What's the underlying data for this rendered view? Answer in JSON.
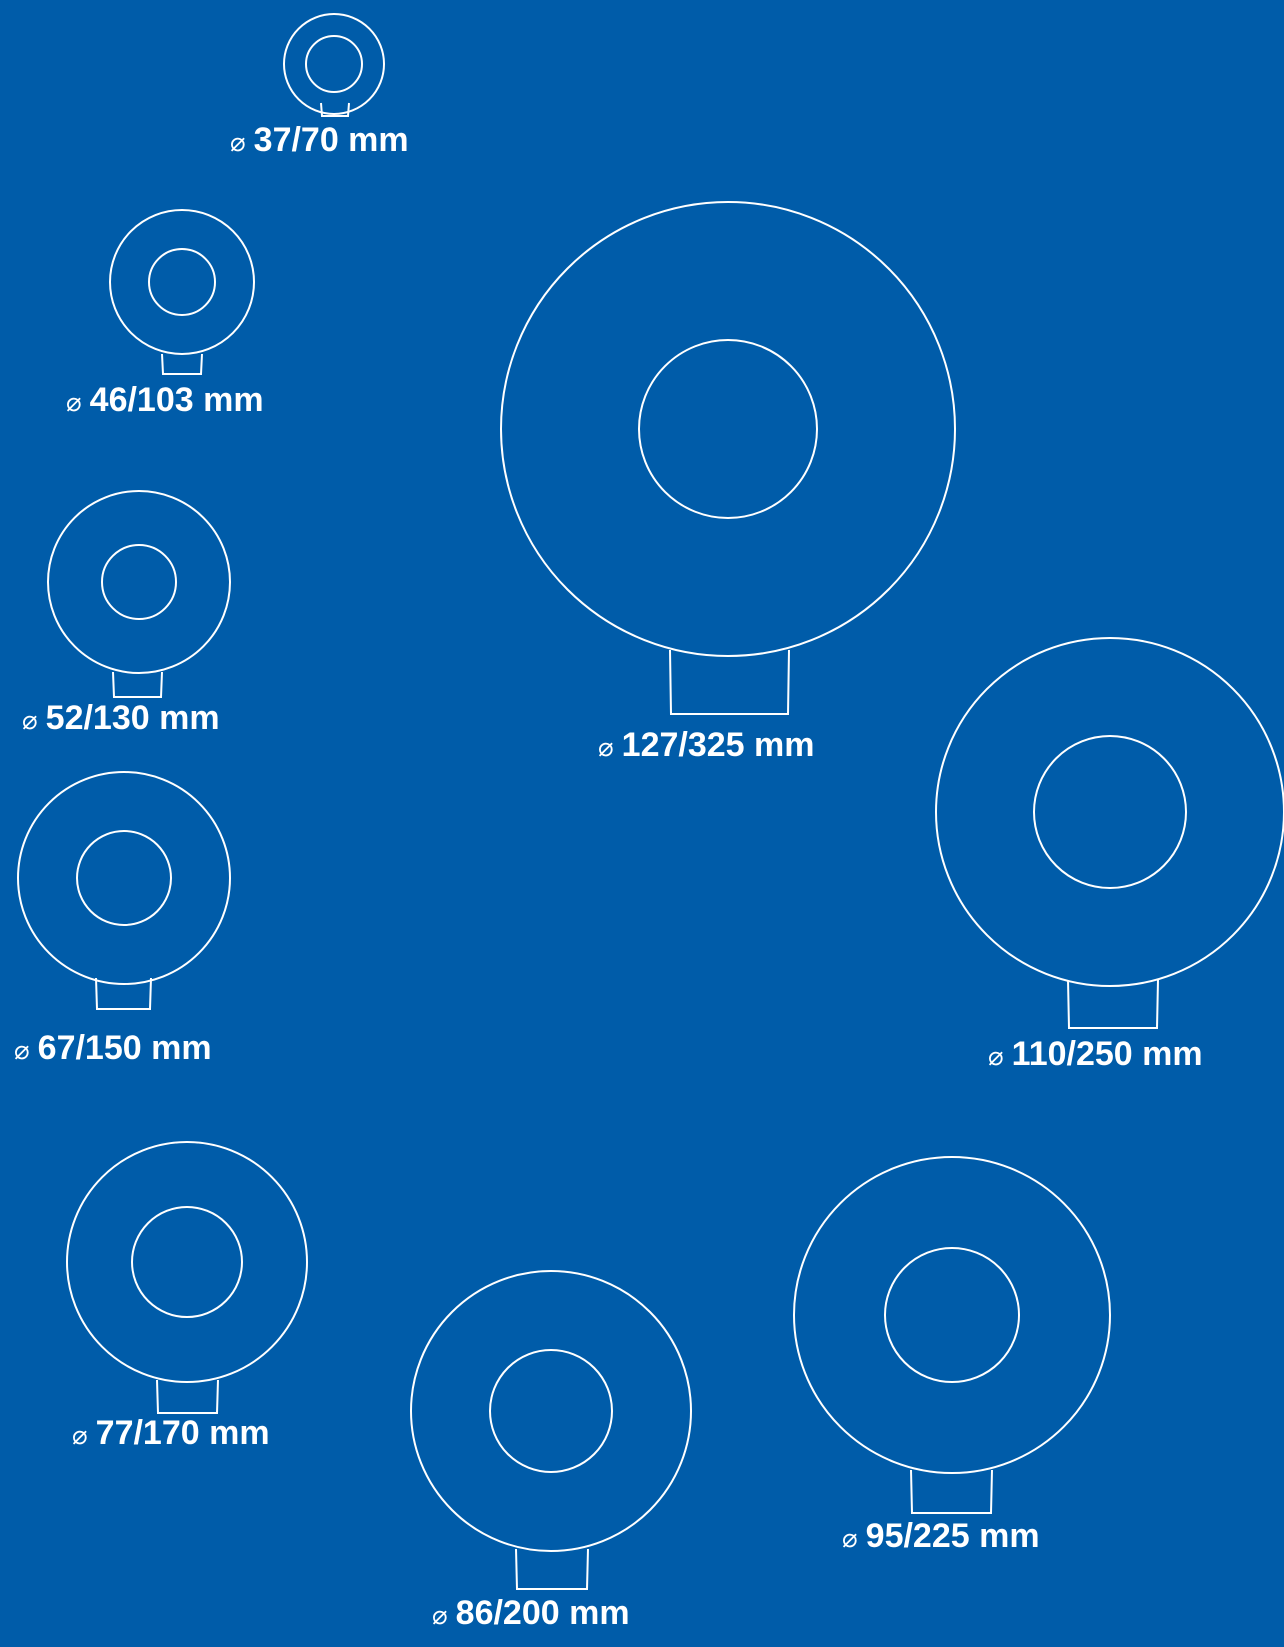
{
  "colors": {
    "background": "#005ca9",
    "line": "#ffffff"
  },
  "diameter_symbol": "⌀",
  "fittings": [
    {
      "name": "37-70",
      "label": "37/70 mm",
      "inner_mm": 37,
      "outer_mm": 70
    },
    {
      "name": "46-103",
      "label": "46/103 mm",
      "inner_mm": 46,
      "outer_mm": 103
    },
    {
      "name": "52-130",
      "label": "52/130 mm",
      "inner_mm": 52,
      "outer_mm": 130
    },
    {
      "name": "67-150",
      "label": "67/150 mm",
      "inner_mm": 67,
      "outer_mm": 150
    },
    {
      "name": "77-170",
      "label": "77/170 mm",
      "inner_mm": 77,
      "outer_mm": 170
    },
    {
      "name": "86-200",
      "label": "86/200 mm",
      "inner_mm": 86,
      "outer_mm": 200
    },
    {
      "name": "95-225",
      "label": "95/225 mm",
      "inner_mm": 95,
      "outer_mm": 225
    },
    {
      "name": "110-250",
      "label": "110/250 mm",
      "inner_mm": 110,
      "outer_mm": 250
    },
    {
      "name": "127-325",
      "label": "127/325 mm",
      "inner_mm": 127,
      "outer_mm": 325
    }
  ]
}
